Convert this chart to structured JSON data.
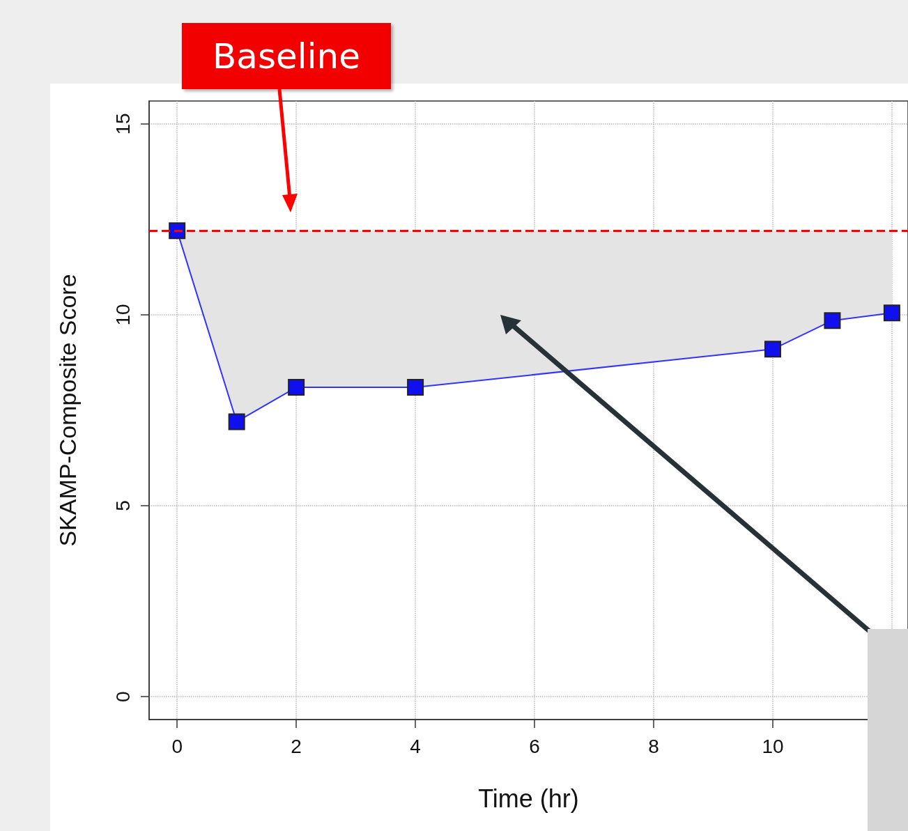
{
  "chart_data": {
    "type": "line",
    "xlabel": "Time (hr)",
    "ylabel": "SKAMP-Composite Score",
    "x": [
      0,
      1,
      2,
      4,
      10,
      11,
      12
    ],
    "series": [
      {
        "color": "#3333ff",
        "values": [
          12.2,
          7.2,
          8.1,
          8.1,
          9.1,
          9.85,
          10.05
        ],
        "lower": [
          12.2,
          7.2,
          8.1,
          8.1,
          9.1,
          9.85,
          10.05
        ],
        "upper": [
          12.2,
          12.2,
          12.2,
          12.2,
          12.2,
          12.2,
          12.2
        ]
      }
    ],
    "xlim": [
      -0.47,
      12.27
    ],
    "ylim": [
      -0.6,
      15.6
    ],
    "xticks": [
      0,
      2,
      4,
      6,
      8,
      10,
      {
        "value": 12,
        "label": null
      }
    ],
    "yticks": [
      0,
      5,
      10,
      15
    ],
    "ref_lines": [
      {
        "axis": "y",
        "value": 12.2,
        "color": "#ff0000",
        "line_style": "dashed"
      }
    ],
    "annotations": [
      "Baseline"
    ],
    "grid": true,
    "marker": "square",
    "line_style": "solid"
  }
}
